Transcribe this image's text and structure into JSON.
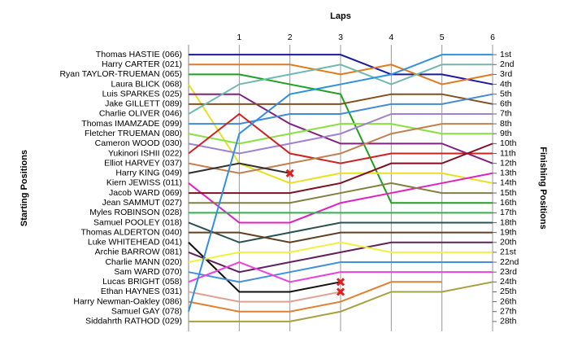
{
  "chart_data": {
    "type": "bump",
    "x_label": "Laps",
    "y_label": "Starting Positions",
    "y2_label": "Finishing Positions",
    "x": [
      0,
      1,
      2,
      3,
      4,
      5,
      6
    ],
    "xlim": [
      0,
      6
    ],
    "xticks": [
      1,
      2,
      3,
      4,
      5,
      6
    ],
    "ylim": [
      0,
      29
    ],
    "reversed": true,
    "grid": true,
    "yticks": [
      {
        "value": 1,
        "label": "1st"
      },
      {
        "value": 2,
        "label": "2nd"
      },
      {
        "value": 3,
        "label": "3rd"
      },
      {
        "value": 4,
        "label": "4th"
      },
      {
        "value": 5,
        "label": "5th"
      },
      {
        "value": 6,
        "label": "6th"
      },
      {
        "value": 7,
        "label": "7th"
      },
      {
        "value": 8,
        "label": "8th"
      },
      {
        "value": 9,
        "label": "9th"
      },
      {
        "value": 10,
        "label": "10th"
      },
      {
        "value": 11,
        "label": "11th"
      },
      {
        "value": 12,
        "label": "12th"
      },
      {
        "value": 13,
        "label": "13th"
      },
      {
        "value": 14,
        "label": "14th"
      },
      {
        "value": 15,
        "label": "15th"
      },
      {
        "value": 16,
        "label": "16th"
      },
      {
        "value": 17,
        "label": "17th"
      },
      {
        "value": 18,
        "label": "18th"
      },
      {
        "value": 19,
        "label": "19th"
      },
      {
        "value": 20,
        "label": "20th"
      },
      {
        "value": 21,
        "label": "21st"
      },
      {
        "value": 22,
        "label": "22nd"
      },
      {
        "value": 23,
        "label": "23rd"
      },
      {
        "value": 24,
        "label": "24th"
      },
      {
        "value": 25,
        "label": "25th"
      },
      {
        "value": 26,
        "label": "26th"
      },
      {
        "value": 27,
        "label": "27th"
      },
      {
        "value": 28,
        "label": "28th"
      }
    ],
    "series": [
      {
        "name": "Thomas HASTIE (066)",
        "color": "#1a1aa0",
        "values": [
          1,
          1,
          1,
          1,
          3,
          3,
          4
        ]
      },
      {
        "name": "Harry CARTER (021)",
        "color": "#e07a20",
        "values": [
          2,
          2,
          2,
          3,
          2,
          4,
          3
        ]
      },
      {
        "name": "Ryan TAYLOR-TRUEMAN (065)",
        "color": "#20a020",
        "values": [
          3,
          3,
          4,
          5,
          16,
          16,
          16
        ]
      },
      {
        "name": "Laura BLICK (068)",
        "color": "#e8e020",
        "values": [
          4,
          12,
          14,
          13,
          13,
          13,
          14
        ]
      },
      {
        "name": "Luis SPARKES (025)",
        "color": "#802080",
        "values": [
          5,
          5,
          8,
          10,
          10,
          10,
          12
        ]
      },
      {
        "name": "Jake GILLETT (089)",
        "color": "#805020",
        "values": [
          6,
          6,
          6,
          6,
          5,
          5,
          6
        ]
      },
      {
        "name": "Charlie OLIVER (046)",
        "color": "#70b8b0",
        "values": [
          7,
          4,
          3,
          2,
          4,
          2,
          2
        ]
      },
      {
        "name": "Thomas IMAMZADE (099)",
        "color": "#4488d8",
        "values": [
          8,
          8,
          7,
          7,
          6,
          6,
          5
        ]
      },
      {
        "name": "Fletcher TRUEMAN (080)",
        "color": "#88e040",
        "values": [
          9,
          10,
          9,
          8,
          8,
          9,
          9
        ]
      },
      {
        "name": "Cameron WOOD (030)",
        "color": "#a080d0",
        "values": [
          10,
          11,
          10,
          9,
          7,
          7,
          7
        ]
      },
      {
        "name": "Yukinori ISHII (022)",
        "color": "#d02020",
        "values": [
          11,
          7,
          11,
          12,
          11,
          11,
          11
        ]
      },
      {
        "name": "Elliot HARVEY (037)",
        "color": "#c08050",
        "values": [
          12,
          13,
          12,
          11,
          9,
          8,
          8
        ]
      },
      {
        "name": "Harry KING (049)",
        "color": "#303030",
        "values": [
          13,
          12,
          13,
          null,
          null,
          null,
          null
        ],
        "retired": true
      },
      {
        "name": "Kiern JEWISS (011)",
        "color": "#e020c0",
        "values": [
          14,
          18,
          18,
          16,
          15,
          14,
          13
        ]
      },
      {
        "name": "Jacob WARD (069)",
        "color": "#801020",
        "values": [
          15,
          15,
          15,
          14,
          12,
          12,
          10
        ]
      },
      {
        "name": "Jean SAMMUT (027)",
        "color": "#808040",
        "values": [
          16,
          16,
          16,
          15,
          14,
          15,
          15
        ]
      },
      {
        "name": "Myles ROBINSON (028)",
        "color": "#30b050",
        "values": [
          17,
          17,
          17,
          17,
          17,
          17,
          17
        ]
      },
      {
        "name": "Samuel POOLEY (018)",
        "color": "#2a5050",
        "values": [
          18,
          20,
          19,
          18,
          18,
          18,
          18
        ]
      },
      {
        "name": "Thomas ALDERTON (040)",
        "color": "#604020",
        "values": [
          19,
          19,
          20,
          19,
          19,
          19,
          19
        ]
      },
      {
        "name": "Luke WHITEHEAD (041)",
        "color": "#101010",
        "values": [
          20,
          25,
          25,
          24,
          null,
          null,
          null
        ],
        "retired": true
      },
      {
        "name": "Archie BARROW (081)",
        "color": "#602060",
        "values": [
          21,
          23,
          22,
          21,
          20,
          20,
          20
        ]
      },
      {
        "name": "Charlie MANN (020)",
        "color": "#f0f040",
        "values": [
          22,
          21,
          21,
          20,
          21,
          21,
          21
        ]
      },
      {
        "name": "Sam WARD (070)",
        "color": "#4090e0",
        "values": [
          23,
          24,
          23,
          22,
          22,
          22,
          22
        ]
      },
      {
        "name": "Lucas BRIGHT (058)",
        "color": "#f040e0",
        "values": [
          24,
          22,
          24,
          23,
          23,
          23,
          23
        ]
      },
      {
        "name": "Ethan HAYNES (031)",
        "color": "#e0a090",
        "values": [
          25,
          26,
          26,
          25,
          null,
          null,
          null
        ],
        "retired": true
      },
      {
        "name": "Harry Newman-Oakley (086)",
        "color": "#e08030",
        "values": [
          26,
          27,
          27,
          26,
          24,
          24,
          null
        ]
      },
      {
        "name": "Samuel GAY (078)",
        "color": "#3090e0",
        "values": [
          27,
          9,
          5,
          4,
          3,
          1,
          1
        ]
      },
      {
        "name": "Siddahrth RATHOD (029)",
        "color": "#a8a040",
        "values": [
          28,
          28,
          28,
          27,
          25,
          25,
          24
        ]
      }
    ]
  }
}
